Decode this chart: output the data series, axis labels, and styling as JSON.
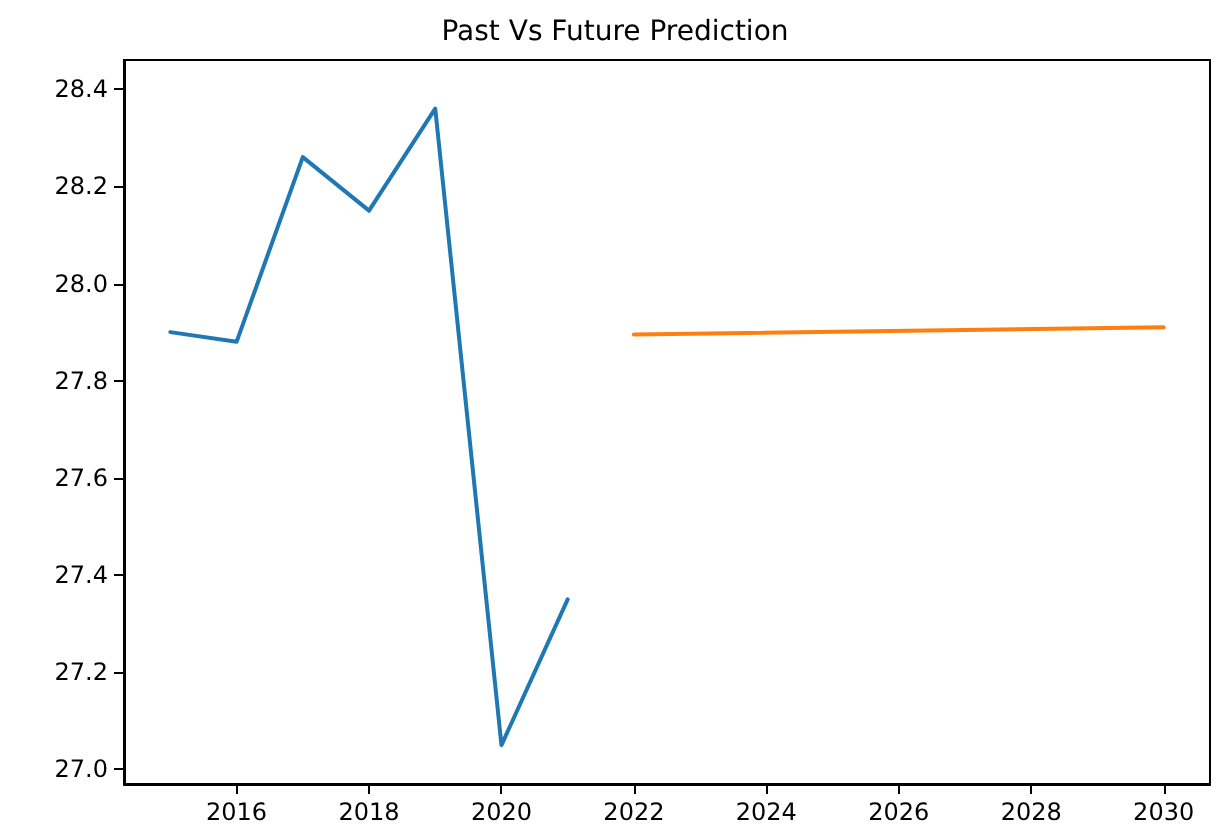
{
  "chart_data": {
    "type": "line",
    "title": "Past Vs Future Prediction",
    "series": [
      {
        "color": "#1f77b4",
        "x": [
          2015,
          2016,
          2017,
          2018,
          2019,
          2020,
          2021
        ],
        "values": [
          27.9,
          27.88,
          28.26,
          28.15,
          28.36,
          27.05,
          27.35
        ]
      },
      {
        "color": "#ff7f0e",
        "x": [
          2022,
          2030
        ],
        "values": [
          27.895,
          27.91
        ]
      }
    ],
    "xlim": [
      2014.3,
      2030.7
    ],
    "xticks": [
      2016,
      2018,
      2020,
      2022,
      2024,
      2026,
      2028,
      2030
    ],
    "ylim": [
      26.97,
      28.46
    ],
    "yticks": [
      {
        "value": 27,
        "label": "27.0"
      },
      27.2,
      27.4,
      27.6,
      27.8,
      {
        "value": 28,
        "label": "28.0"
      },
      28.2,
      28.4
    ],
    "grid": false,
    "marker": "none",
    "line_style": "solid"
  }
}
